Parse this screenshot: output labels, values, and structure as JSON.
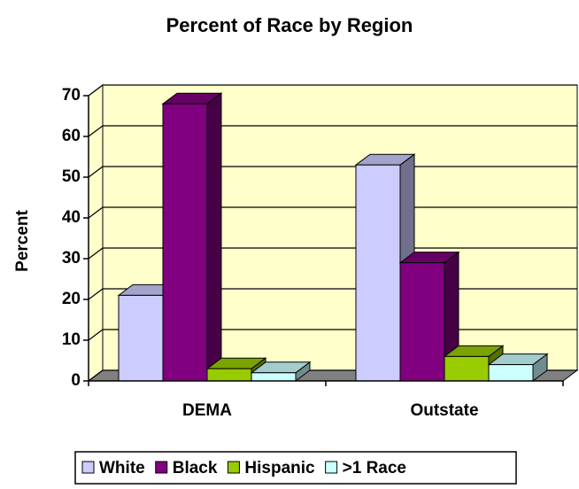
{
  "chart_data": {
    "type": "bar3d",
    "title": "Percent of Race by Region",
    "y_label": "Percent",
    "categories": [
      "DEMA",
      "Outstate"
    ],
    "series": [
      {
        "name": "White",
        "color": "#ccccff",
        "values": [
          21,
          53
        ]
      },
      {
        "name": "Black",
        "color": "#800080",
        "values": [
          68,
          29
        ]
      },
      {
        "name": "Hispanic",
        "color": "#99cc00",
        "values": [
          3,
          6
        ]
      },
      {
        "name": ">1 Race",
        "color": "#ccffff",
        "values": [
          2,
          4
        ]
      }
    ],
    "ylim": [
      0,
      70
    ],
    "yticks": [
      0,
      10,
      20,
      30,
      40,
      50,
      60,
      70
    ],
    "grid": true,
    "wall_color": "#ffffcc",
    "floor_color": "#808080",
    "legend": "bottom"
  }
}
